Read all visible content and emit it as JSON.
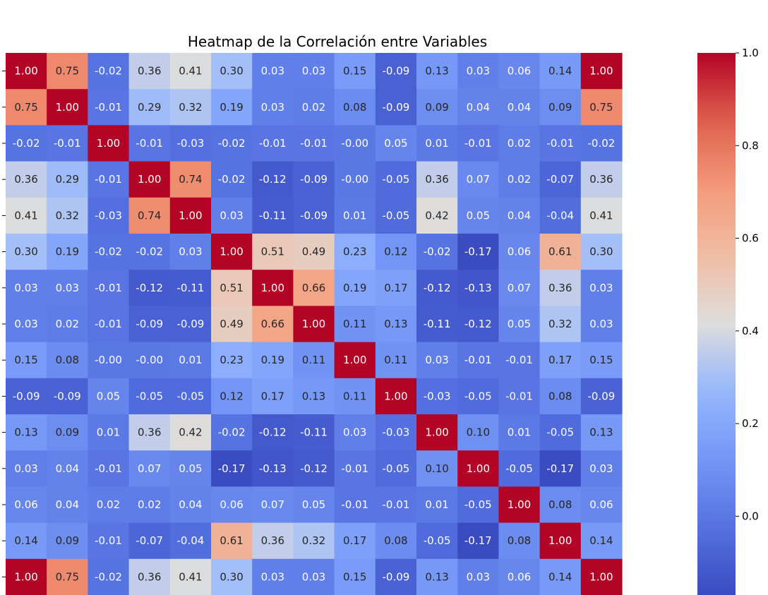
{
  "chart_data": {
    "type": "heatmap",
    "title": "Heatmap de la Correlación entre Variables",
    "colormap": "coolwarm",
    "vmin": -0.17,
    "vmax": 1.0,
    "colorbar_ticks": [
      "0.0",
      "0.2",
      "0.4",
      "0.6",
      "0.8",
      "1.0"
    ],
    "row_labels_visible": false,
    "values": [
      [
        "1.00",
        "0.75",
        "-0.02",
        "0.36",
        "0.41",
        "0.30",
        "0.03",
        "0.03",
        "0.15",
        "-0.09",
        "0.13",
        "0.03",
        "0.06",
        "0.14",
        "1.00"
      ],
      [
        "0.75",
        "1.00",
        "-0.01",
        "0.29",
        "0.32",
        "0.19",
        "0.03",
        "0.02",
        "0.08",
        "-0.09",
        "0.09",
        "0.04",
        "0.04",
        "0.09",
        "0.75"
      ],
      [
        "-0.02",
        "-0.01",
        "1.00",
        "-0.01",
        "-0.03",
        "-0.02",
        "-0.01",
        "-0.01",
        "-0.00",
        "0.05",
        "0.01",
        "-0.01",
        "0.02",
        "-0.01",
        "-0.02"
      ],
      [
        "0.36",
        "0.29",
        "-0.01",
        "1.00",
        "0.74",
        "-0.02",
        "-0.12",
        "-0.09",
        "-0.00",
        "-0.05",
        "0.36",
        "0.07",
        "0.02",
        "-0.07",
        "0.36"
      ],
      [
        "0.41",
        "0.32",
        "-0.03",
        "0.74",
        "1.00",
        "0.03",
        "-0.11",
        "-0.09",
        "0.01",
        "-0.05",
        "0.42",
        "0.05",
        "0.04",
        "-0.04",
        "0.41"
      ],
      [
        "0.30",
        "0.19",
        "-0.02",
        "-0.02",
        "0.03",
        "1.00",
        "0.51",
        "0.49",
        "0.23",
        "0.12",
        "-0.02",
        "-0.17",
        "0.06",
        "0.61",
        "0.30"
      ],
      [
        "0.03",
        "0.03",
        "-0.01",
        "-0.12",
        "-0.11",
        "0.51",
        "1.00",
        "0.66",
        "0.19",
        "0.17",
        "-0.12",
        "-0.13",
        "0.07",
        "0.36",
        "0.03"
      ],
      [
        "0.03",
        "0.02",
        "-0.01",
        "-0.09",
        "-0.09",
        "0.49",
        "0.66",
        "1.00",
        "0.11",
        "0.13",
        "-0.11",
        "-0.12",
        "0.05",
        "0.32",
        "0.03"
      ],
      [
        "0.15",
        "0.08",
        "-0.00",
        "-0.00",
        "0.01",
        "0.23",
        "0.19",
        "0.11",
        "1.00",
        "0.11",
        "0.03",
        "-0.01",
        "-0.01",
        "0.17",
        "0.15"
      ],
      [
        "-0.09",
        "-0.09",
        "0.05",
        "-0.05",
        "-0.05",
        "0.12",
        "0.17",
        "0.13",
        "0.11",
        "1.00",
        "-0.03",
        "-0.05",
        "-0.01",
        "0.08",
        "-0.09"
      ],
      [
        "0.13",
        "0.09",
        "0.01",
        "0.36",
        "0.42",
        "-0.02",
        "-0.12",
        "-0.11",
        "0.03",
        "-0.03",
        "1.00",
        "0.10",
        "0.01",
        "-0.05",
        "0.13"
      ],
      [
        "0.03",
        "0.04",
        "-0.01",
        "0.07",
        "0.05",
        "-0.17",
        "-0.13",
        "-0.12",
        "-0.01",
        "-0.05",
        "0.10",
        "1.00",
        "-0.05",
        "-0.17",
        "0.03"
      ],
      [
        "0.06",
        "0.04",
        "0.02",
        "0.02",
        "0.04",
        "0.06",
        "0.07",
        "0.05",
        "-0.01",
        "-0.01",
        "0.01",
        "-0.05",
        "1.00",
        "0.08",
        "0.06"
      ],
      [
        "0.14",
        "0.09",
        "-0.01",
        "-0.07",
        "-0.04",
        "0.61",
        "0.36",
        "0.32",
        "0.17",
        "0.08",
        "-0.05",
        "-0.17",
        "0.08",
        "1.00",
        "0.14"
      ],
      [
        "1.00",
        "0.75",
        "-0.02",
        "0.36",
        "0.41",
        "0.30",
        "0.03",
        "0.03",
        "0.15",
        "-0.09",
        "0.13",
        "0.03",
        "0.06",
        "0.14",
        "1.00"
      ]
    ]
  }
}
